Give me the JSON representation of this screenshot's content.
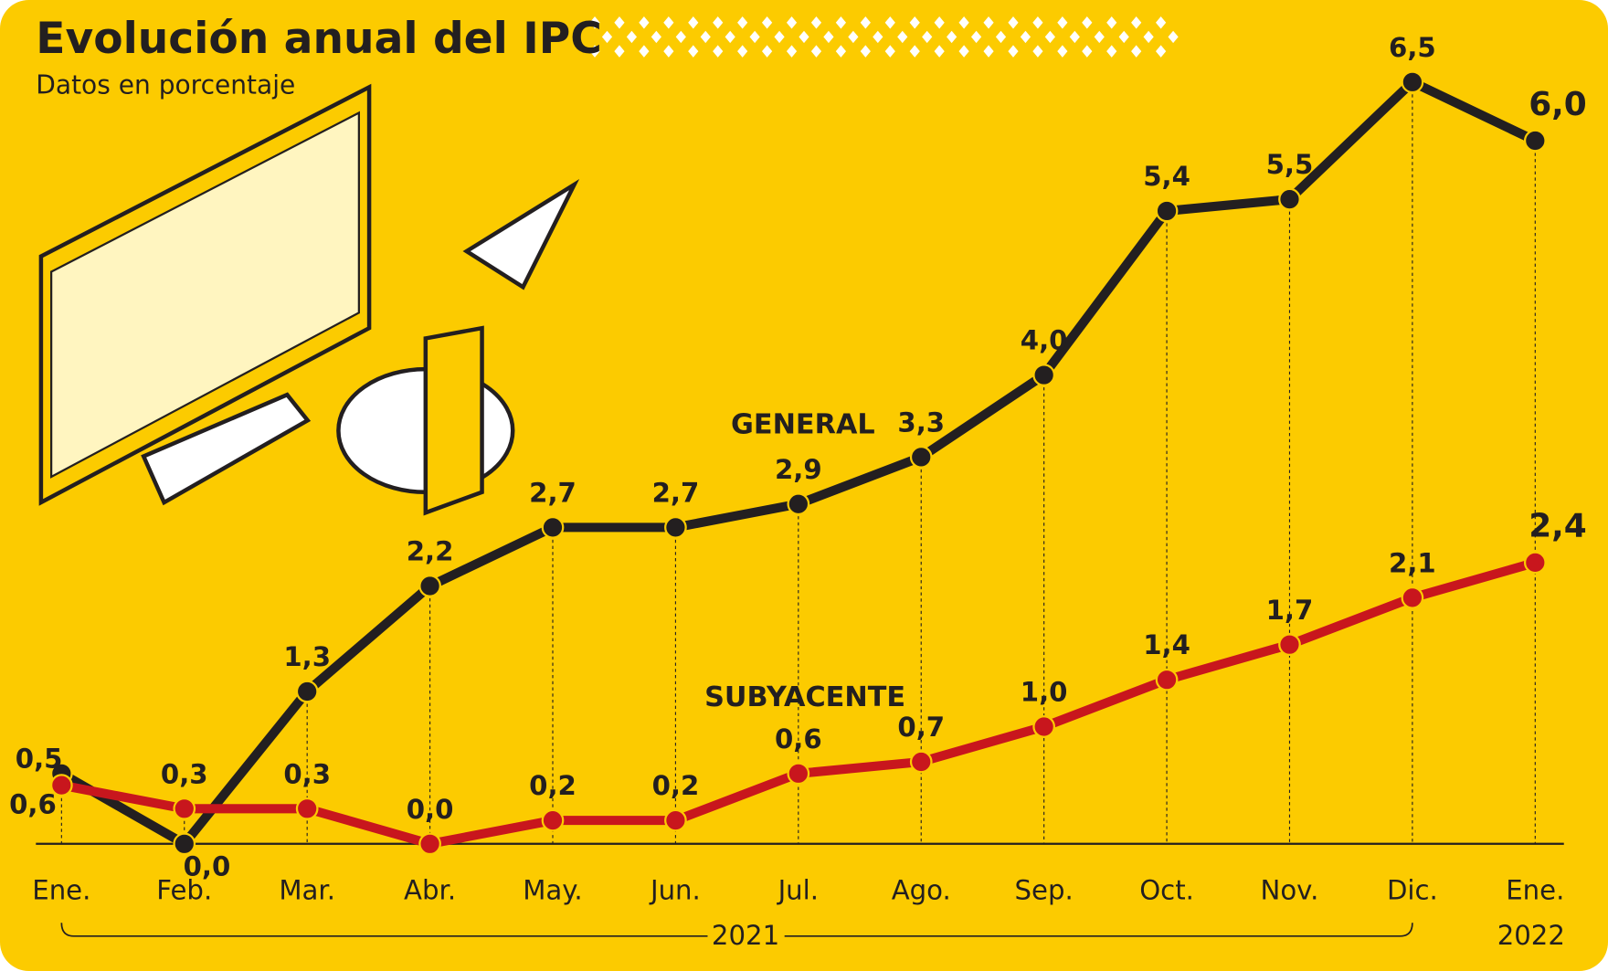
{
  "chart_data": {
    "type": "line",
    "title": "Evolución anual del IPC",
    "subtitle": "Datos en porcentaje",
    "categories": [
      "Ene.",
      "Feb.",
      "Mar.",
      "Abr.",
      "May.",
      "Jun.",
      "Jul.",
      "Ago.",
      "Sep.",
      "Oct.",
      "Nov.",
      "Dic.",
      "Ene."
    ],
    "year_groups": [
      "2021",
      "2022"
    ],
    "ylim": [
      0,
      6.5
    ],
    "series": [
      {
        "name": "GENERAL",
        "color": "#231f20",
        "values": [
          0.6,
          0.0,
          1.3,
          2.2,
          2.7,
          2.7,
          2.9,
          3.3,
          4.0,
          5.4,
          5.5,
          6.5,
          6.0
        ],
        "value_labels": [
          "0,6",
          "0,0",
          "1,3",
          "2,2",
          "2,7",
          "2,7",
          "2,9",
          "3,3",
          "4,0",
          "5,4",
          "5,5",
          "6,5",
          "6,0"
        ]
      },
      {
        "name": "SUBYACENTE",
        "color": "#c8161d",
        "values": [
          0.5,
          0.3,
          0.3,
          0.0,
          0.2,
          0.2,
          0.6,
          0.7,
          1.0,
          1.4,
          1.7,
          2.1,
          2.4
        ],
        "value_labels": [
          "0,5",
          "0,3",
          "0,3",
          "0,0",
          "0,2",
          "0,2",
          "0,6",
          "0,7",
          "1,0",
          "1,4",
          "1,7",
          "2,1",
          "2,4"
        ]
      }
    ]
  }
}
